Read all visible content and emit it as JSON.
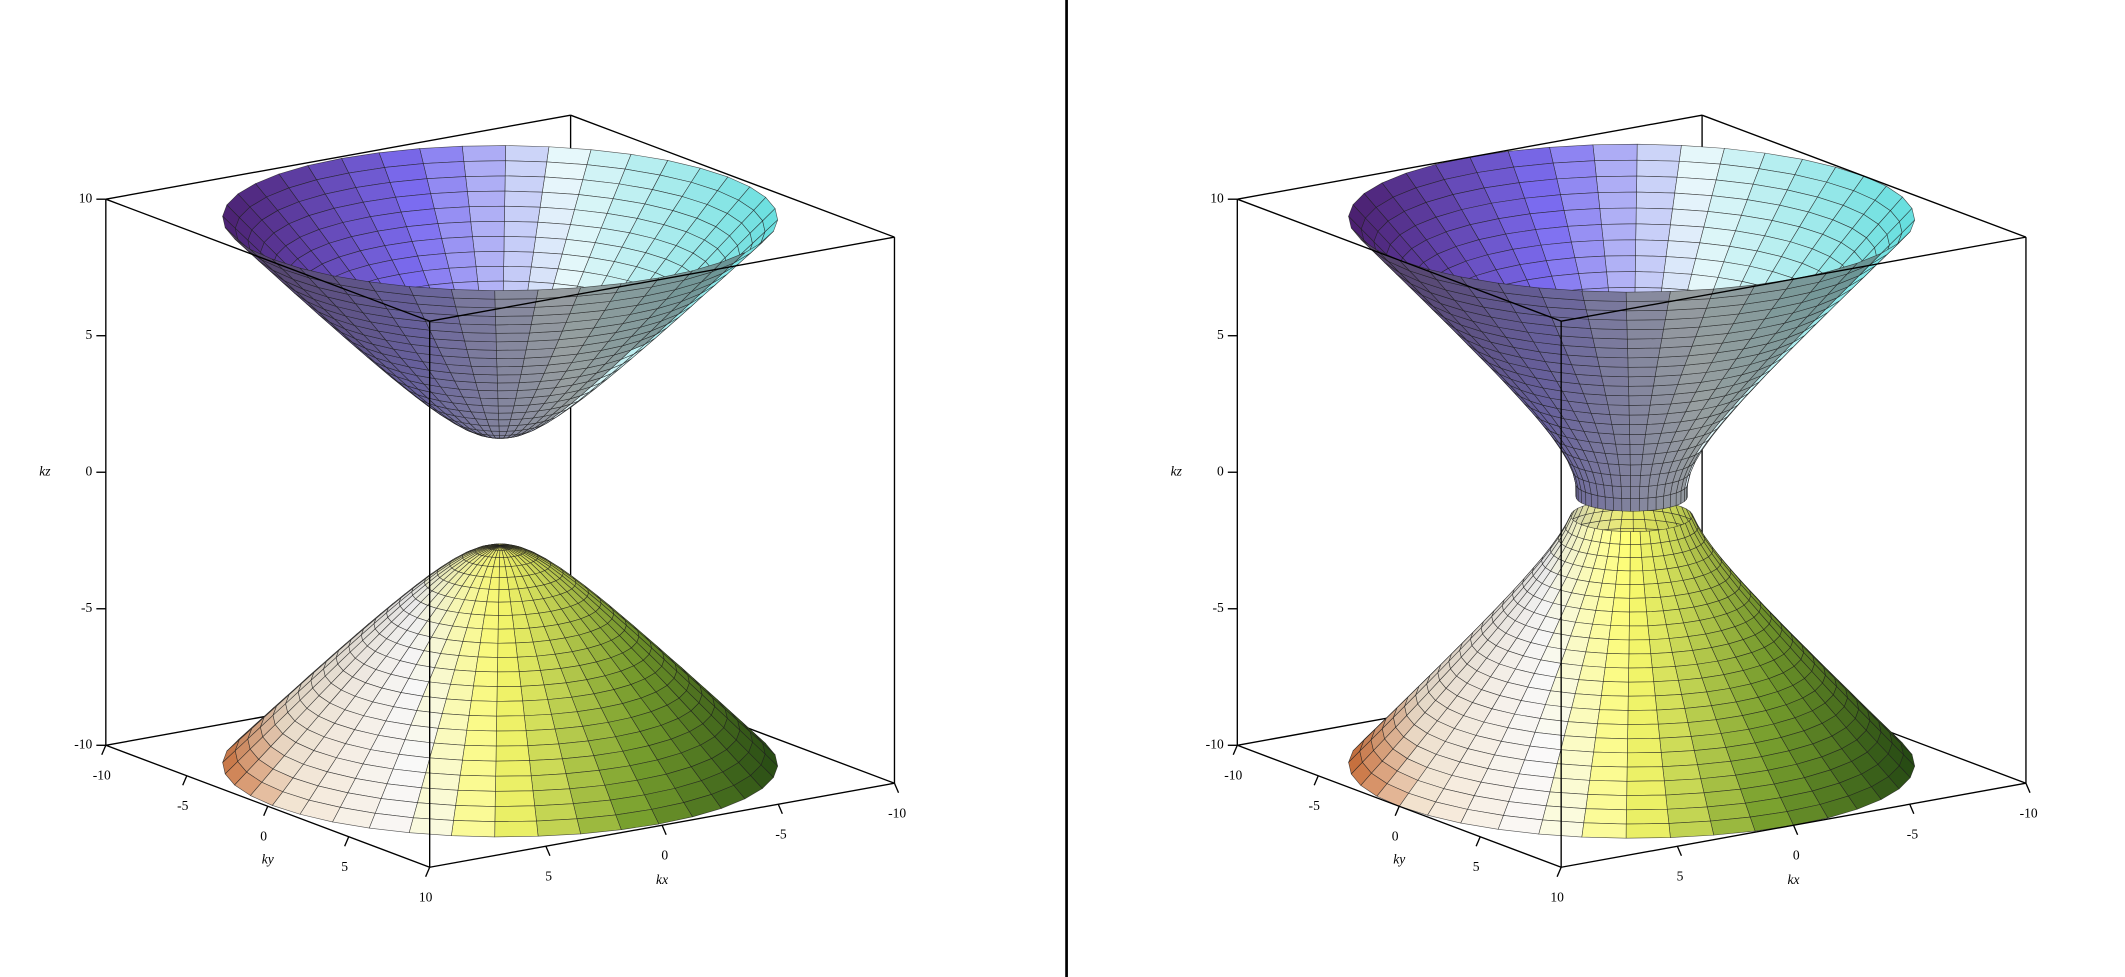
{
  "chart_data": [
    {
      "type": "surface3d",
      "xlabel": "kx",
      "ylabel": "ky",
      "zlabel": "kz",
      "xlim": [
        -10,
        10
      ],
      "ylim": [
        -10,
        10
      ],
      "zlim": [
        -10,
        10
      ],
      "xticks": [
        -10,
        -5,
        0,
        5
      ],
      "yticks": [
        -10,
        -5,
        0,
        5,
        10
      ],
      "zticks": [
        -10,
        -5,
        0,
        5,
        10
      ]
    },
    {
      "type": "surface3d",
      "xlabel": "kx",
      "ylabel": "ky",
      "zlabel": "kz",
      "xlim": [
        -10,
        10
      ],
      "ylim": [
        -10,
        10
      ],
      "zlim": [
        -10,
        10
      ],
      "xticks": [
        -10,
        -5,
        0,
        5
      ],
      "yticks": [
        -10,
        -5,
        0,
        5,
        10
      ],
      "zticks": [
        -10,
        -5,
        0,
        5,
        10
      ]
    }
  ]
}
